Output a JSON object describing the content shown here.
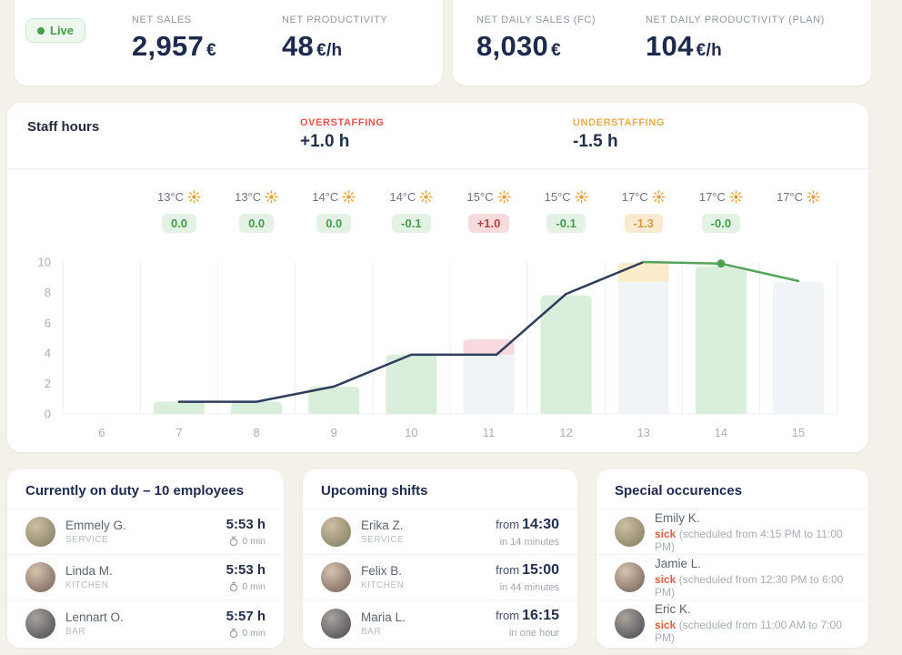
{
  "top": {
    "live_label": "Live",
    "live_color": "#43a047",
    "kpis_live": [
      {
        "label": "NET SALES",
        "value": "2,957",
        "unit": "€"
      },
      {
        "label": "NET PRODUCTIVITY",
        "value": "48",
        "unit": "€/h"
      }
    ],
    "kpis_daily": [
      {
        "label": "NET DAILY SALES (FC)",
        "value": "8,030",
        "unit": "€"
      },
      {
        "label": "NET DAILY PRODUCTIVITY (PLAN)",
        "value": "104",
        "unit": "€/h"
      }
    ]
  },
  "staff_hours": {
    "title": "Staff hours",
    "overstaffing_label": "OVERSTAFFING",
    "overstaffing_value": "+1.0 h",
    "overstaffing_color": "#e4544b",
    "understaffing_label": "UNDERSTAFFING",
    "understaffing_value": "-1.5 h",
    "understaffing_color": "#e7ad4d"
  },
  "chart_data": {
    "type": "bar+line",
    "x": [
      6,
      7,
      8,
      9,
      10,
      11,
      12,
      13,
      14,
      15
    ],
    "y_ticks": [
      0,
      2,
      4,
      6,
      8,
      10
    ],
    "ylim": [
      0,
      10
    ],
    "grid": "vertical",
    "weather": [
      {
        "hour": 7,
        "temp": "13°C",
        "delta": "0.0",
        "status": "green"
      },
      {
        "hour": 8,
        "temp": "13°C",
        "delta": "0.0",
        "status": "green"
      },
      {
        "hour": 9,
        "temp": "14°C",
        "delta": "0.0",
        "status": "green"
      },
      {
        "hour": 10,
        "temp": "14°C",
        "delta": "-0.1",
        "status": "green"
      },
      {
        "hour": 11,
        "temp": "15°C",
        "delta": "+1.0",
        "status": "red"
      },
      {
        "hour": 12,
        "temp": "15°C",
        "delta": "-0.1",
        "status": "green"
      },
      {
        "hour": 13,
        "temp": "17°C",
        "delta": "-1.3",
        "status": "yellow"
      },
      {
        "hour": 14,
        "temp": "17°C",
        "delta": "-0.0",
        "status": "green"
      },
      {
        "hour": 15,
        "temp": "17°C",
        "delta": null,
        "status": null
      }
    ],
    "bars": [
      {
        "hour": 7,
        "segments": [
          {
            "value": 0.8,
            "color": "green"
          }
        ]
      },
      {
        "hour": 8,
        "segments": [
          {
            "value": 0.8,
            "color": "green"
          }
        ]
      },
      {
        "hour": 9,
        "segments": [
          {
            "value": 1.8,
            "color": "green"
          }
        ]
      },
      {
        "hour": 10,
        "segments": [
          {
            "value": 3.9,
            "color": "green"
          }
        ]
      },
      {
        "hour": 11,
        "segments": [
          {
            "value": 3.9,
            "color": "gray"
          },
          {
            "value": 1.0,
            "color": "pink"
          }
        ]
      },
      {
        "hour": 12,
        "segments": [
          {
            "value": 7.8,
            "color": "green"
          }
        ]
      },
      {
        "hour": 13,
        "segments": [
          {
            "value": 8.7,
            "color": "gray"
          },
          {
            "value": 1.25,
            "color": "yellow"
          }
        ]
      },
      {
        "hour": 14,
        "segments": [
          {
            "value": 9.7,
            "color": "green"
          }
        ]
      },
      {
        "hour": 15,
        "segments": [
          {
            "value": 8.7,
            "color": "gray"
          }
        ]
      }
    ],
    "bar_colors": {
      "green": "#d9eedb",
      "gray": "#f0f4f6",
      "pink": "#f8d9dd",
      "yellow": "#faecca"
    },
    "series": [
      {
        "name": "actual-staffing",
        "color": "#2e3d5c",
        "points": [
          [
            7,
            0.8
          ],
          [
            8,
            0.8
          ],
          [
            9,
            1.8
          ],
          [
            10,
            3.9
          ],
          [
            11.1,
            3.9
          ],
          [
            12,
            7.9
          ],
          [
            13,
            10
          ]
        ]
      },
      {
        "name": "planned-staffing",
        "color": "#55a45b",
        "points": [
          [
            13,
            10
          ],
          [
            14,
            9.9
          ],
          [
            15,
            8.75
          ]
        ]
      }
    ],
    "marker": {
      "x": 14,
      "y": 9.9,
      "color": "#4ba053"
    }
  },
  "on_duty": {
    "title": "Currently on duty – 10 employees",
    "rows": [
      {
        "name": "Emmely G.",
        "role": "SERVICE",
        "time": "5:53 h",
        "break": "0 min"
      },
      {
        "name": "Linda M.",
        "role": "KITCHEN",
        "time": "5:53 h",
        "break": "0 min"
      },
      {
        "name": "Lennart O.",
        "role": "BAR",
        "time": "5:57 h",
        "break": "0 min"
      }
    ]
  },
  "upcoming": {
    "title": "Upcoming shifts",
    "rows": [
      {
        "name": "Erika Z.",
        "role": "SERVICE",
        "from_label": "from",
        "time": "14:30",
        "relative": "in 14 minutes"
      },
      {
        "name": "Felix B.",
        "role": "KITCHEN",
        "from_label": "from",
        "time": "15:00",
        "relative": "in 44 minutes"
      },
      {
        "name": "Maria L.",
        "role": "BAR",
        "from_label": "from",
        "time": "16:15",
        "relative": "in one hour"
      }
    ]
  },
  "special": {
    "title": "Special occurences",
    "rows": [
      {
        "name": "Emily K.",
        "status": "sick",
        "detail": "(scheduled from 4:15 PM to 11:00 PM)"
      },
      {
        "name": "Jamie L.",
        "status": "sick",
        "detail": "(scheduled from 12:30 PM to 6:00 PM)"
      },
      {
        "name": "Eric K.",
        "status": "sick",
        "detail": "(scheduled from 11:00 AM to 7:00 PM)"
      }
    ]
  }
}
